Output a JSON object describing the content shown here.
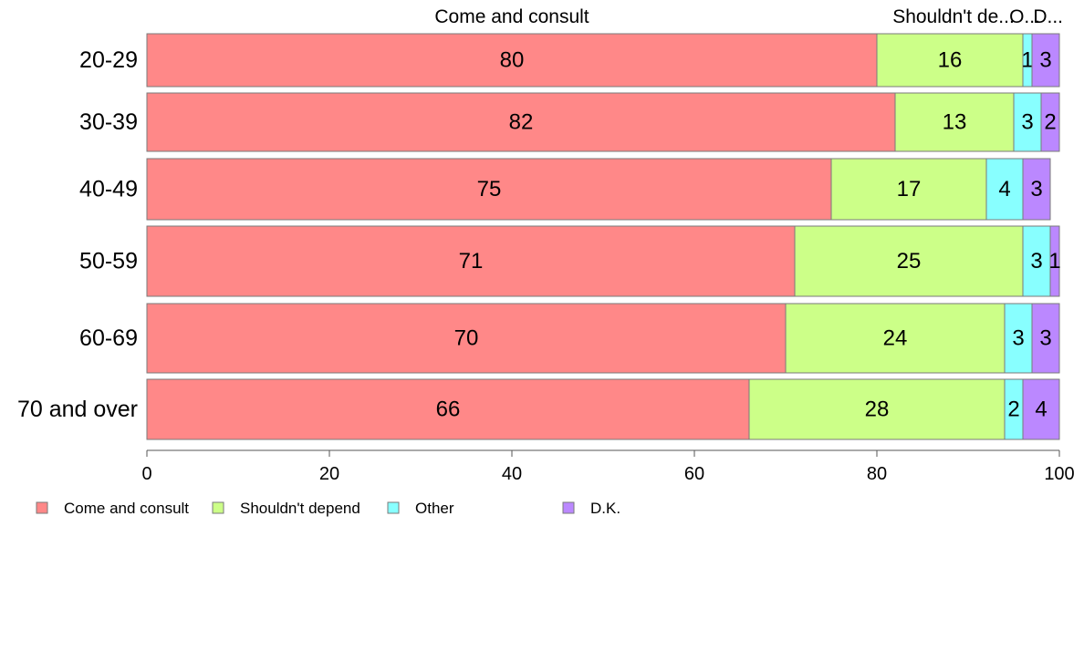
{
  "chart_data": {
    "type": "bar",
    "orientation": "horizontal",
    "stacked": true,
    "categories": [
      "20-29",
      "30-39",
      "40-49",
      "50-59",
      "60-69",
      "70 and over"
    ],
    "series": [
      {
        "name": "Come and consult",
        "color": "#ff8888",
        "values": [
          80,
          82,
          75,
          71,
          70,
          66
        ]
      },
      {
        "name": "Shouldn't depend",
        "color": "#ccff88",
        "values": [
          16,
          13,
          17,
          25,
          24,
          28
        ]
      },
      {
        "name": "Other",
        "color": "#88ffff",
        "values": [
          1,
          3,
          4,
          3,
          3,
          2
        ]
      },
      {
        "name": "D.K.",
        "color": "#bb88ff",
        "values": [
          3,
          2,
          3,
          1,
          3,
          4
        ]
      }
    ],
    "top_labels": [
      "Come and consult",
      "Shouldn't de...",
      "O...",
      "D..."
    ],
    "xlim": [
      0,
      100
    ],
    "xticks": [
      0,
      20,
      40,
      60,
      80,
      100
    ],
    "legend_position": "bottom-left",
    "grid": false
  }
}
